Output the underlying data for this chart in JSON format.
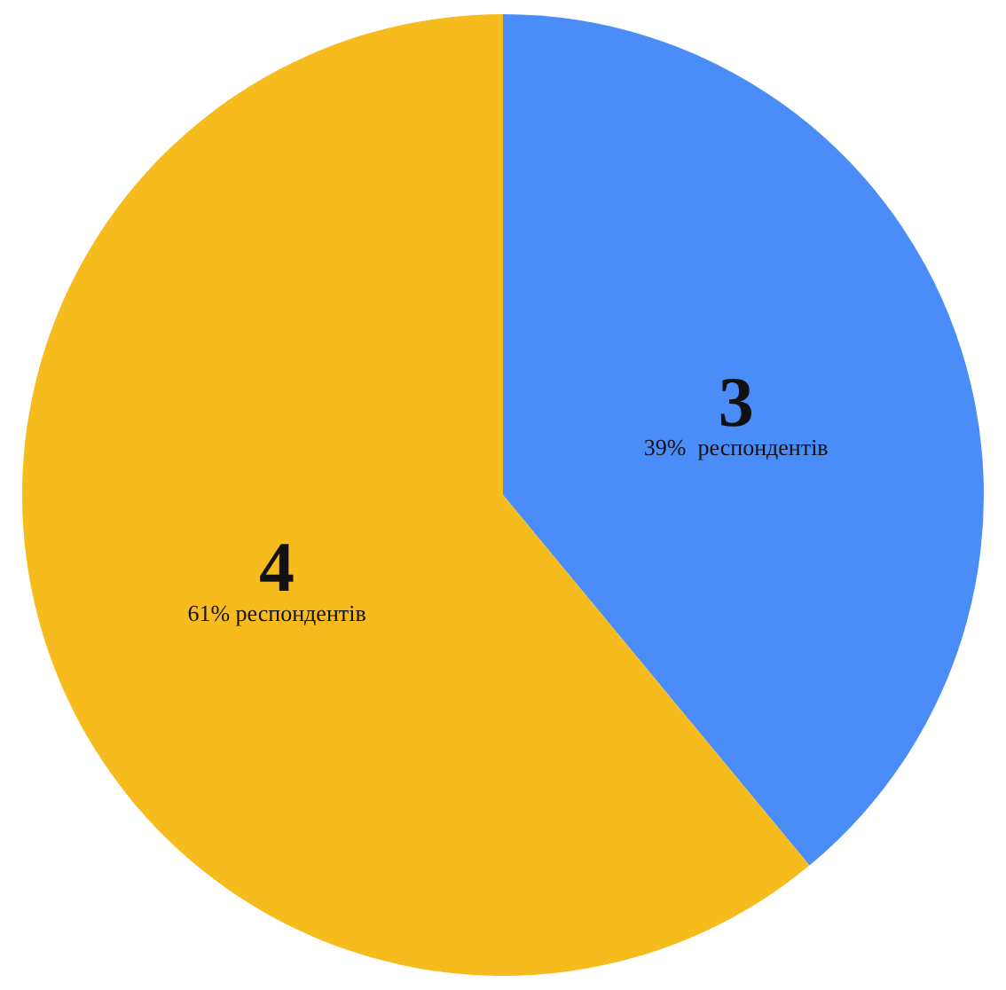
{
  "chart_data": {
    "type": "pie",
    "categories": [
      "3",
      "4"
    ],
    "values": [
      39,
      61
    ],
    "colors": [
      "#4b8df8",
      "#f6bb1c"
    ],
    "value_labels": [
      "39%  респондентів",
      "61% респондентів"
    ],
    "legend": false
  }
}
